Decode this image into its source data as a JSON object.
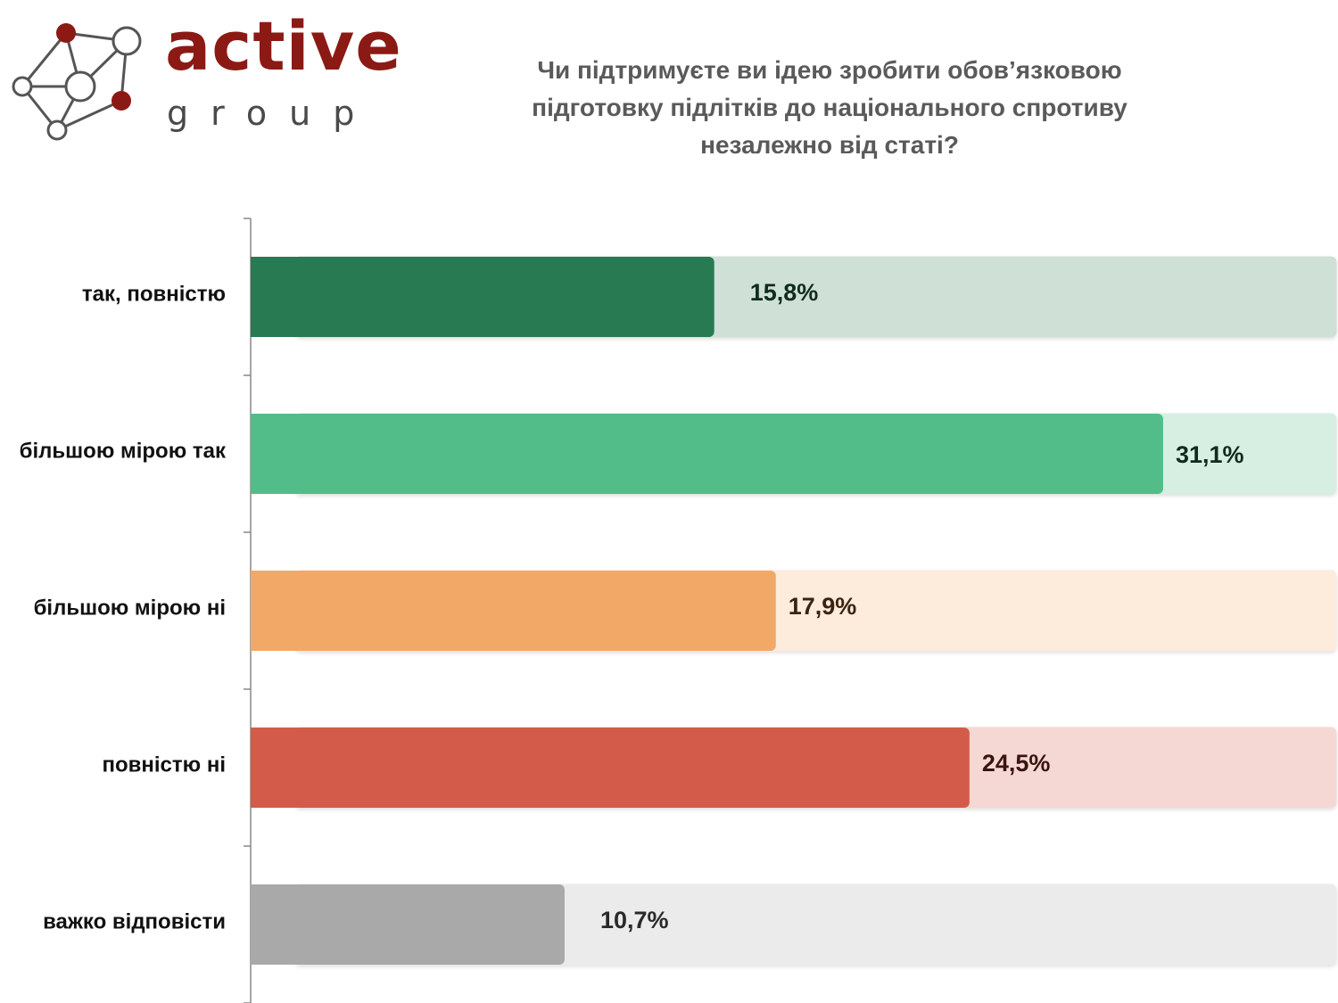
{
  "logo": {
    "name": "active",
    "sub": "group"
  },
  "chart_data": {
    "type": "bar",
    "orientation": "horizontal",
    "title": "Чи підтримуєте ви ідею зробити обов’язковою підготовку підлітків до національного спротиву незалежно від статі?",
    "categories": [
      "так, повністю",
      "більшою мірою так",
      "більшою мірою ні",
      "повністю ні",
      "важко відповісти"
    ],
    "values": [
      15.8,
      31.1,
      17.9,
      24.5,
      10.7
    ],
    "value_labels": [
      "15,8%",
      "31,1%",
      "17,9%",
      "24,5%",
      "10,7%"
    ],
    "colors": [
      "#287a52",
      "#52bd88",
      "#f2a967",
      "#d35b49",
      "#a9a9a9"
    ],
    "track_colors": [
      "#cfe0d7",
      "#d6efe2",
      "#fdebdc",
      "#f5d8d4",
      "#ebebeb"
    ],
    "label_colors": [
      "#0f2b1e",
      "#0f2b1e",
      "#3a2410",
      "#3a1510",
      "#2a2a2a"
    ],
    "xlim": [
      0,
      37
    ],
    "grid": false,
    "legend": "none"
  }
}
